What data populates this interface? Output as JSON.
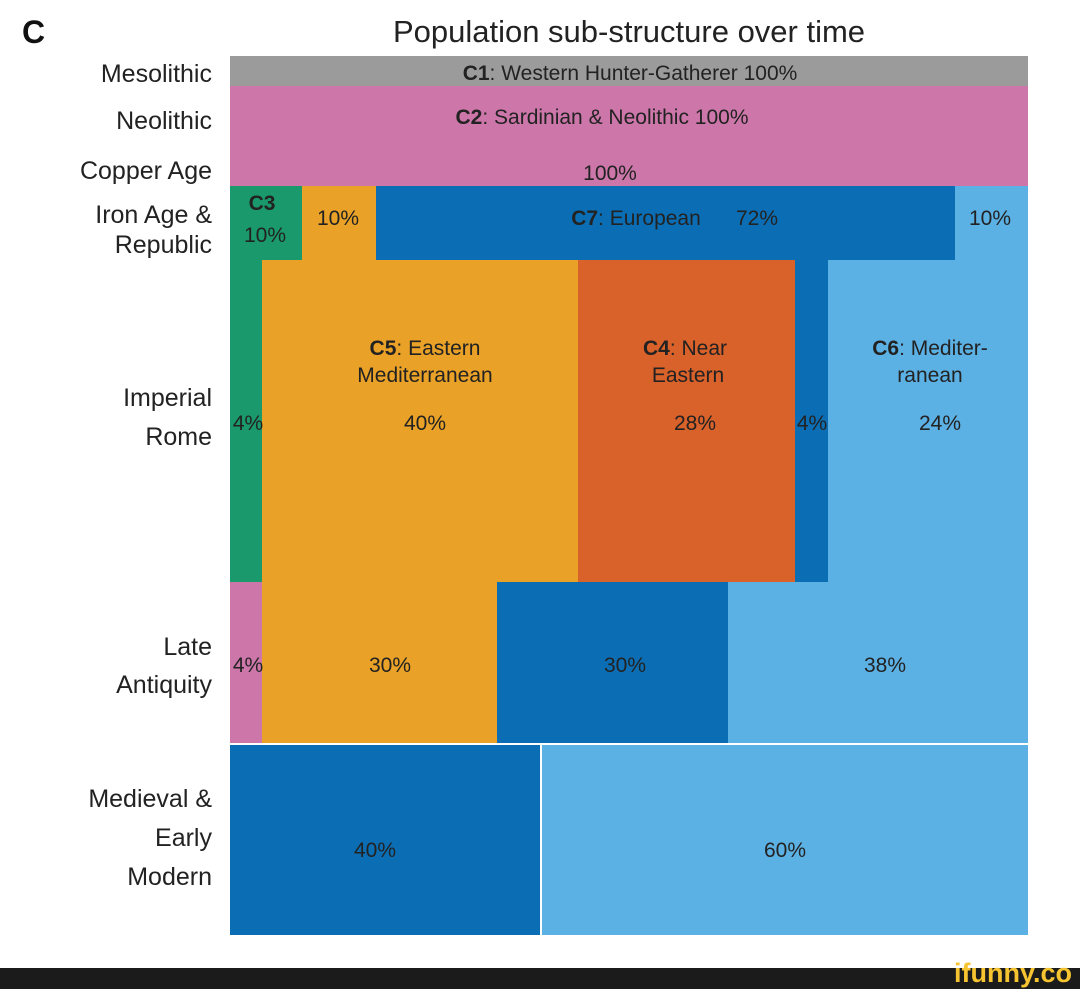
{
  "panel_label": "C",
  "chart_data": {
    "type": "mosaic",
    "title": "Population sub-structure over time",
    "colors": {
      "C1": "#9b9b9b",
      "C2": "#cd76a9",
      "C3": "#1a9a6c",
      "C4": "#d9612a",
      "C5": "#e9a227",
      "C6": "#5cb1e4",
      "C7": "#0b6eb4"
    },
    "components": {
      "C1": "Western Hunter-Gatherer",
      "C2": "Sardinian & Neolithic",
      "C3": "",
      "C4": "Near Eastern",
      "C5": "Eastern Mediterranean",
      "C6": "Mediter-ranean",
      "C7": "European"
    },
    "periods": [
      {
        "label": "Mesolithic",
        "segments": [
          {
            "component": "C1",
            "percent": 100,
            "text": "100%"
          }
        ]
      },
      {
        "label": "Neolithic",
        "segments": [
          {
            "component": "C2",
            "percent": 100,
            "text": "100%"
          }
        ]
      },
      {
        "label": "Copper Age",
        "segments": [
          {
            "component": "C2",
            "percent": 100,
            "text": "100%"
          }
        ]
      },
      {
        "label": "Iron Age & Republic",
        "segments": [
          {
            "component": "C3",
            "percent": 10,
            "text": "10%"
          },
          {
            "component": "C5",
            "percent": 10,
            "text": "10%"
          },
          {
            "component": "C7",
            "percent": 72,
            "text": "72%"
          },
          {
            "component": "C6",
            "percent": 10,
            "text": "10%"
          }
        ]
      },
      {
        "label": "Imperial Rome",
        "segments": [
          {
            "component": "C3",
            "percent": 4,
            "text": "4%"
          },
          {
            "component": "C5",
            "percent": 40,
            "text": "40%"
          },
          {
            "component": "C4",
            "percent": 28,
            "text": "28%"
          },
          {
            "component": "C7",
            "percent": 4,
            "text": "4%"
          },
          {
            "component": "C6",
            "percent": 24,
            "text": "24%"
          }
        ]
      },
      {
        "label": "Late Antiquity",
        "segments": [
          {
            "component": "C2",
            "percent": 4,
            "text": "4%"
          },
          {
            "component": "C5",
            "percent": 30,
            "text": "30%"
          },
          {
            "component": "C7",
            "percent": 30,
            "text": "30%"
          },
          {
            "component": "C6",
            "percent": 38,
            "text": "38%"
          }
        ]
      },
      {
        "label": "Medieval & Early Modern",
        "segments": [
          {
            "component": "C7",
            "percent": 40,
            "text": "40%"
          },
          {
            "component": "C6",
            "percent": 60,
            "text": "60%"
          }
        ]
      }
    ]
  },
  "labels": {
    "c1": "C1",
    "c1_name": ": Western Hunter-Gatherer 100%",
    "c2": "C2",
    "c2_name": ": Sardinian & Neolithic 100%",
    "c3": "C3",
    "c7": "C7",
    "c7_name": ": European",
    "c5": "C5",
    "c5_name1": ": Eastern",
    "c5_name2": "Mediterranean",
    "c4": "C4",
    "c4_name1": ": Near",
    "c4_name2": "Eastern",
    "c6": "C6",
    "c6_name1": ": Mediter-",
    "c6_name2": "ranean"
  },
  "row_labels": [
    "Mesolithic",
    "Neolithic",
    "Copper Age",
    "Iron Age &",
    "Republic",
    "Imperial",
    "Rome",
    "Late",
    "Antiquity",
    "Medieval &",
    "Early",
    "Modern"
  ],
  "watermark": "ifunny.co"
}
